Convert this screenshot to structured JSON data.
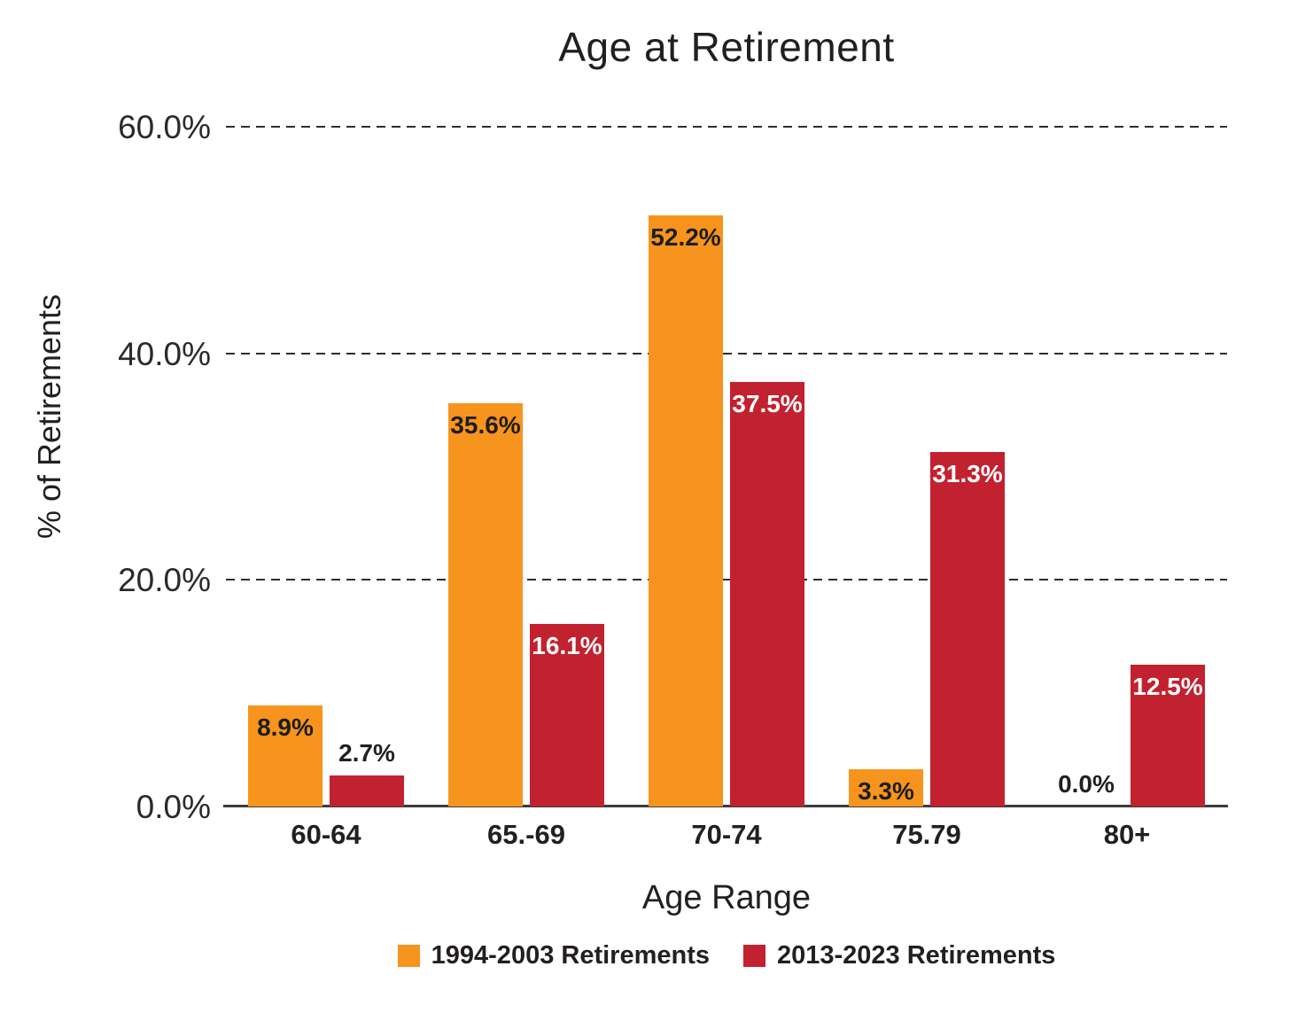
{
  "chart_data": {
    "type": "bar",
    "title": "Age at Retirement",
    "xlabel": "Age Range",
    "ylabel": "% of Retirements",
    "categories": [
      "60-64",
      "65.-69",
      "70-74",
      "75.79",
      "80+"
    ],
    "series": [
      {
        "name": "1994-2003 Retirements",
        "color": "#F7941E",
        "inside_label_color": "#1d1d1b",
        "values": [
          8.9,
          35.6,
          52.2,
          3.3,
          0.0
        ],
        "labels": [
          "8.9%",
          "35.6%",
          "52.2%",
          "3.3%",
          "0.0%"
        ]
      },
      {
        "name": "2013-2023 Retirements",
        "color": "#C2212F",
        "inside_label_color": "#ffffff",
        "values": [
          2.7,
          16.1,
          37.5,
          31.3,
          12.5
        ],
        "labels": [
          "2.7%",
          "16.1%",
          "37.5%",
          "31.3%",
          "12.5%"
        ]
      }
    ],
    "y_ticks": [
      {
        "value": 0,
        "label": "0.0%"
      },
      {
        "value": 20,
        "label": "20.0%"
      },
      {
        "value": 40,
        "label": "40.0%"
      },
      {
        "value": 60,
        "label": "60.0%"
      }
    ],
    "ylim": [
      0,
      62.6
    ],
    "grid": "horizontal dashed lines at 20/40/60, behind bars",
    "legend_position": "bottom",
    "outside_label_color": "#231f20",
    "axis_line_color": "#3b3b3b"
  }
}
